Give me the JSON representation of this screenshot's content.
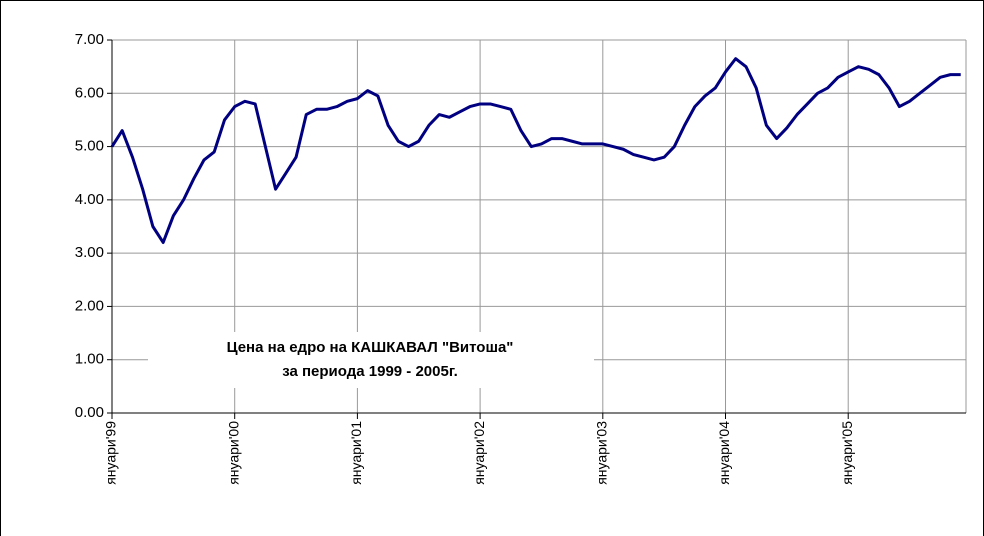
{
  "chart_data": {
    "type": "line",
    "annotation": [
      "Цена на едро на КАШКАВАЛ \"Витоша\"",
      "за периода 1999 - 2005г."
    ],
    "x": [
      1999,
      1999.083,
      1999.167,
      1999.25,
      1999.333,
      1999.417,
      1999.5,
      1999.583,
      1999.667,
      1999.75,
      1999.833,
      1999.917,
      2000,
      2000.083,
      2000.167,
      2000.25,
      2000.333,
      2000.417,
      2000.5,
      2000.583,
      2000.667,
      2000.75,
      2000.833,
      2000.917,
      2001,
      2001.083,
      2001.167,
      2001.25,
      2001.333,
      2001.417,
      2001.5,
      2001.583,
      2001.667,
      2001.75,
      2001.833,
      2001.917,
      2002,
      2002.083,
      2002.167,
      2002.25,
      2002.333,
      2002.417,
      2002.5,
      2002.583,
      2002.667,
      2002.75,
      2002.833,
      2002.917,
      2003,
      2003.083,
      2003.167,
      2003.25,
      2003.333,
      2003.417,
      2003.5,
      2003.583,
      2003.667,
      2003.75,
      2003.833,
      2003.917,
      2004,
      2004.083,
      2004.167,
      2004.25,
      2004.333,
      2004.417,
      2004.5,
      2004.583,
      2004.667,
      2004.75,
      2004.833,
      2004.917,
      2005,
      2005.083,
      2005.167,
      2005.25,
      2005.333,
      2005.417,
      2005.5,
      2005.583,
      2005.667,
      2005.75,
      2005.833,
      2005.917
    ],
    "series": [
      {
        "color": "#000080",
        "values": [
          5.0,
          5.3,
          4.8,
          4.2,
          3.5,
          3.2,
          3.7,
          4.0,
          4.4,
          4.75,
          4.9,
          5.5,
          5.75,
          5.85,
          5.8,
          5.0,
          4.2,
          4.5,
          4.8,
          5.6,
          5.7,
          5.7,
          5.75,
          5.85,
          5.9,
          6.05,
          5.95,
          5.4,
          5.1,
          5.0,
          5.1,
          5.4,
          5.6,
          5.55,
          5.65,
          5.75,
          5.8,
          5.8,
          5.75,
          5.7,
          5.3,
          5.0,
          5.05,
          5.15,
          5.15,
          5.1,
          5.05,
          5.05,
          5.05,
          5.0,
          4.95,
          4.85,
          4.8,
          4.75,
          4.8,
          5.0,
          5.4,
          5.75,
          5.95,
          6.1,
          6.4,
          6.65,
          6.5,
          6.1,
          5.4,
          5.15,
          5.35,
          5.6,
          5.8,
          6.0,
          6.1,
          6.3,
          6.4,
          6.5,
          6.45,
          6.35,
          6.1,
          5.75,
          5.85,
          6.0,
          6.15,
          6.3,
          6.35,
          6.35
        ]
      }
    ],
    "xlim": [
      1999,
      2005.96
    ],
    "xticks": [
      {
        "value": 1999,
        "label": "януари'99"
      },
      {
        "value": 2000,
        "label": "януари'00"
      },
      {
        "value": 2001,
        "label": "януари'01"
      },
      {
        "value": 2002,
        "label": "януари'02"
      },
      {
        "value": 2003,
        "label": "януари'03"
      },
      {
        "value": 2004,
        "label": "януари'04"
      },
      {
        "value": 2005,
        "label": "януари'05"
      }
    ],
    "ylim": [
      0,
      7
    ],
    "yticks": [
      {
        "value": 0,
        "label": "0.00"
      },
      {
        "value": 1,
        "label": "1.00"
      },
      {
        "value": 2,
        "label": "2.00"
      },
      {
        "value": 3,
        "label": "3.00"
      },
      {
        "value": 4,
        "label": "4.00"
      },
      {
        "value": 5,
        "label": "5.00"
      },
      {
        "value": 6,
        "label": "6.00"
      },
      {
        "value": 7,
        "label": "7.00"
      }
    ],
    "grid": true
  }
}
